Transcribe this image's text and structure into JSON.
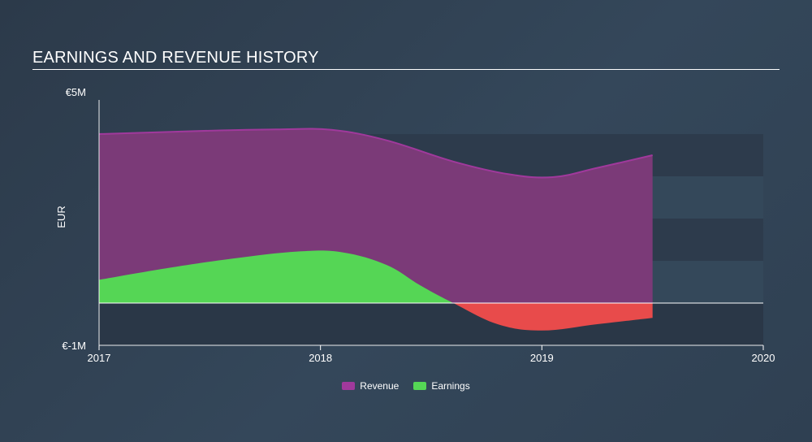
{
  "title": "EARNINGS AND REVENUE HISTORY",
  "colors": {
    "revenue": "#a0399c",
    "revenue_fill": "#7b3a78",
    "earnings_positive": "#55d655",
    "earnings_negative": "#e84b4b",
    "band_dark": "#2d3b4c",
    "band_light": "#34485a",
    "below_zero": "#2a3747"
  },
  "chart_data": {
    "type": "area",
    "xlabel": "",
    "ylabel": "EUR",
    "ylim": [
      -1000000,
      5000000
    ],
    "y_ticks": [
      {
        "value": 5000000,
        "label": "€5M"
      },
      {
        "value": -1000000,
        "label": "€-1M"
      }
    ],
    "x_ticks": [
      {
        "value": 2017,
        "label": "2017"
      },
      {
        "value": 2018,
        "label": "2018"
      },
      {
        "value": 2019,
        "label": "2019"
      },
      {
        "value": 2020,
        "label": "2020"
      }
    ],
    "xlim": [
      2017,
      2020
    ],
    "series": [
      {
        "name": "Revenue",
        "x": [
          2017.0,
          2017.5,
          2017.8,
          2018.05,
          2018.3,
          2018.6,
          2018.85,
          2019.05,
          2019.25,
          2019.5
        ],
        "y": [
          4000000,
          4080000,
          4110000,
          4100000,
          3850000,
          3350000,
          3050000,
          2980000,
          3200000,
          3500000
        ]
      },
      {
        "name": "Earnings",
        "x": [
          2017.0,
          2017.3,
          2017.6,
          2017.9,
          2018.1,
          2018.3,
          2018.45,
          2018.6,
          2018.8,
          2019.0,
          2019.25,
          2019.5
        ],
        "y": [
          550000,
          820000,
          1050000,
          1220000,
          1200000,
          900000,
          420000,
          0,
          -500000,
          -650000,
          -500000,
          -350000
        ]
      }
    ],
    "legend": {
      "position": "bottom-center",
      "entries": [
        "Revenue",
        "Earnings"
      ]
    },
    "grid": false
  }
}
